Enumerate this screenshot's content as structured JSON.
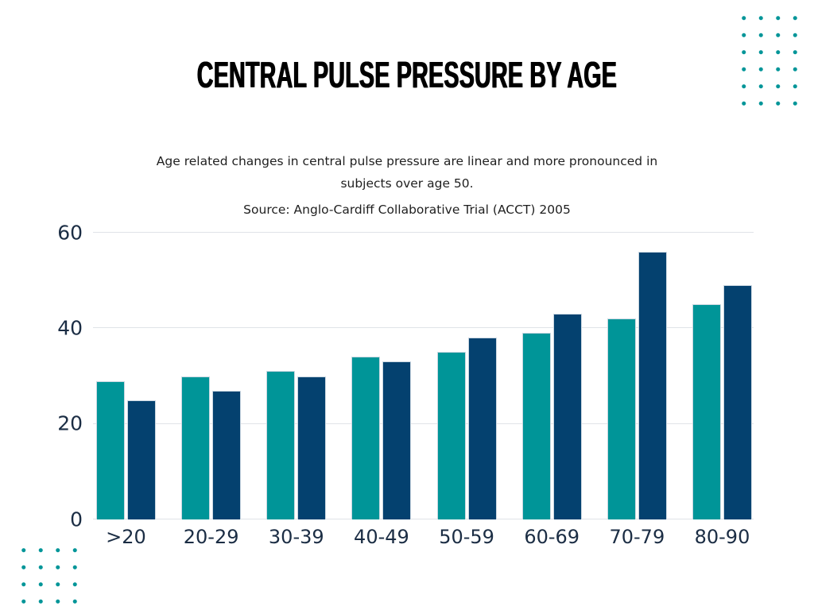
{
  "header": {
    "title": "CENTRAL PULSE PRESSURE BY AGE",
    "description_lines": [
      "Age related changes in central pulse pressure are linear and more pronounced in",
      "subjects over age 50."
    ],
    "source": "Source: Anglo-Cardiff Collaborative Trial (ACCT) 2005"
  },
  "colors": {
    "teal": "#009598",
    "navy": "#04416F",
    "axis_text": "#1B2D44",
    "gridline": "#E0E3E8",
    "bar_stroke": "#CBD7E1",
    "title_text": "#000000",
    "body_text": "#1F1F1F",
    "background": "#FFFFFF"
  },
  "chart_data": {
    "type": "bar",
    "title": "CENTRAL PULSE PRESSURE BY AGE",
    "categories": [
      ">20",
      "20-29",
      "30-39",
      "40-49",
      "50-59",
      "60-69",
      "70-79",
      "80-90"
    ],
    "series": [
      {
        "name": "teal",
        "color": "#009598",
        "values": [
          29,
          30,
          31,
          34,
          35,
          39,
          42,
          45
        ]
      },
      {
        "name": "navy",
        "color": "#04416F",
        "values": [
          25,
          27,
          30,
          33,
          38,
          43,
          56,
          49
        ]
      }
    ],
    "xlabel": "",
    "ylabel": "",
    "ylim": [
      0,
      60
    ],
    "yticks": [
      0,
      20,
      40,
      60
    ],
    "grid": true,
    "legend": false
  },
  "decor": {
    "dot_color": "#009598",
    "top_right_dots": {
      "cols": 4,
      "rows": 6
    },
    "bottom_left_dots": {
      "cols": 4,
      "rows": 4
    }
  }
}
